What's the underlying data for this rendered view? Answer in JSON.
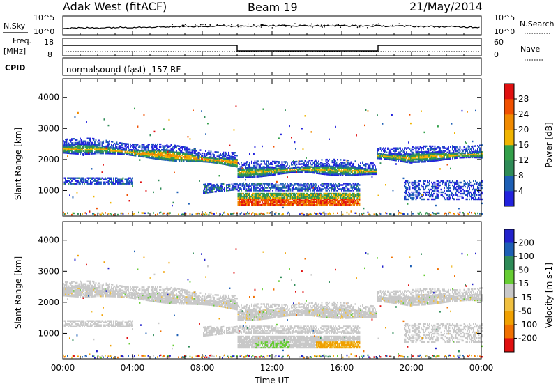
{
  "header": {
    "station": "Adak West (fitACF)",
    "beam": "Beam 19",
    "date": "21/May/2014"
  },
  "noise_panel": {
    "left_label": "N.Sky",
    "right_label": "N.Search",
    "left_ticks": [
      "10^5",
      "10^0"
    ],
    "right_ticks": [
      "10^5",
      "10^0"
    ]
  },
  "freq_panel": {
    "left_label_1": "Freq.",
    "left_label_2": "[MHz]",
    "left_ticks": [
      "18",
      "8"
    ],
    "right_label": "Nave",
    "right_ticks": [
      "60",
      "0"
    ]
  },
  "cpid_panel": {
    "label": "CPID",
    "program": "normalsound (fast) -157 RF"
  },
  "colors": {
    "power": [
      "#2222dd",
      "#1d5fb5",
      "#2e8b57",
      "#33a04a",
      "#f0b400",
      "#f08a00",
      "#f05000",
      "#e01010"
    ],
    "velocity": [
      "#e01010",
      "#f07000",
      "#f0a000",
      "#f0c040",
      "#c8c8c8",
      "#66cc33",
      "#2e8b57",
      "#1d5fb5",
      "#2222cc"
    ]
  },
  "chart_data": [
    {
      "type": "heatmap",
      "title": "",
      "xlabel": "Time UT",
      "ylabel": "Slant Range [km]",
      "xticks": [
        "00:00",
        "04:00",
        "08:00",
        "12:00",
        "16:00",
        "20:00",
        "00:00"
      ],
      "yticks": [
        1000,
        2000,
        3000,
        4000
      ],
      "xlim_hours": [
        0,
        24
      ],
      "ylim_km": [
        180,
        4600
      ],
      "colorbar_label": "Power [dB]",
      "colorbar_ticks": [
        4,
        8,
        12,
        16,
        20,
        24,
        28
      ],
      "colorbar_range": [
        0,
        32
      ]
    },
    {
      "type": "heatmap",
      "title": "",
      "xlabel": "Time UT",
      "ylabel": "Slant Range [km]",
      "xticks": [
        "00:00",
        "04:00",
        "08:00",
        "12:00",
        "16:00",
        "20:00",
        "00:00"
      ],
      "yticks": [
        1000,
        2000,
        3000,
        4000
      ],
      "xlim_hours": [
        0,
        24
      ],
      "ylim_km": [
        180,
        4600
      ],
      "colorbar_label": "Velocity [m s-1]",
      "colorbar_ticks": [
        200,
        100,
        50,
        15,
        -15,
        -50,
        -100,
        -200
      ]
    }
  ],
  "x_axis": {
    "title": "Time UT",
    "ticks": [
      "00:00",
      "04:00",
      "08:00",
      "12:00",
      "16:00",
      "20:00",
      "00:00"
    ]
  }
}
